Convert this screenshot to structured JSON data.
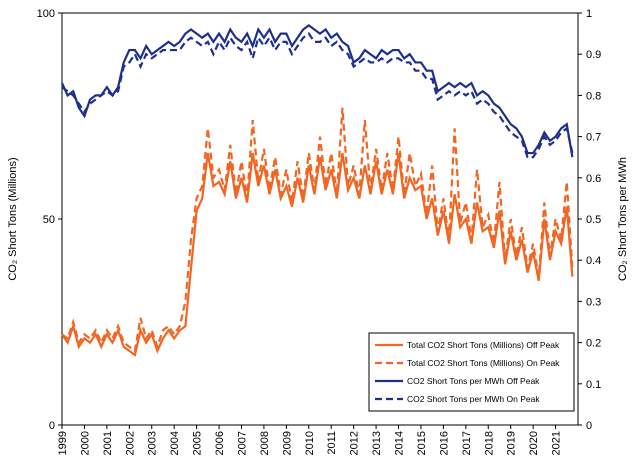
{
  "chart_data": {
    "type": "line",
    "ylabel": "CO₂ Short Tons (Millions)",
    "y2label": "CO₂ Short Tons per MWh",
    "xlim": [
      1999,
      2022
    ],
    "xticks": [
      1999,
      2000,
      2001,
      2002,
      2003,
      2004,
      2005,
      2006,
      2007,
      2008,
      2009,
      2010,
      2011,
      2012,
      2013,
      2014,
      2015,
      2016,
      2017,
      2018,
      2019,
      2020,
      2021
    ],
    "ylim": [
      0,
      100
    ],
    "yticks": [
      0,
      50,
      100
    ],
    "y2lim": [
      0,
      1
    ],
    "y2ticks": [
      0,
      0.1,
      0.2,
      0.3,
      0.4,
      0.5,
      0.6,
      0.7,
      0.8,
      0.9,
      1
    ],
    "legend": "lower right",
    "x": [
      1999,
      1999.25,
      1999.5,
      1999.75,
      2000,
      2000.25,
      2000.5,
      2000.75,
      2001,
      2001.25,
      2001.5,
      2001.75,
      2002,
      2002.25,
      2002.5,
      2002.75,
      2003,
      2003.25,
      2003.5,
      2003.75,
      2004,
      2004.25,
      2004.5,
      2004.75,
      2005,
      2005.25,
      2005.5,
      2005.75,
      2006,
      2006.25,
      2006.5,
      2006.75,
      2007,
      2007.25,
      2007.5,
      2007.75,
      2008,
      2008.25,
      2008.5,
      2008.75,
      2009,
      2009.25,
      2009.5,
      2009.75,
      2010,
      2010.25,
      2010.5,
      2010.75,
      2011,
      2011.25,
      2011.5,
      2011.75,
      2012,
      2012.25,
      2012.5,
      2012.75,
      2013,
      2013.25,
      2013.5,
      2013.75,
      2014,
      2014.25,
      2014.5,
      2014.75,
      2015,
      2015.25,
      2015.5,
      2015.75,
      2016,
      2016.25,
      2016.5,
      2016.75,
      2017,
      2017.25,
      2017.5,
      2017.75,
      2018,
      2018.25,
      2018.5,
      2018.75,
      2019,
      2019.25,
      2019.5,
      2019.75,
      2020,
      2020.25,
      2020.5,
      2020.75,
      2021,
      2021.25,
      2021.5,
      2021.75
    ],
    "series": [
      {
        "name": "Total CO2 Short Tons (Millions) Off Peak",
        "color": "#f26522",
        "dashed": false,
        "axis": "y",
        "values": [
          22,
          20,
          24,
          19,
          21,
          20,
          22,
          19,
          22,
          20,
          23,
          19,
          18,
          17,
          23,
          20,
          22,
          18,
          21,
          23,
          21,
          23,
          24,
          38,
          52,
          55,
          66,
          58,
          59,
          56,
          64,
          55,
          60,
          54,
          66,
          58,
          63,
          56,
          62,
          55,
          58,
          53,
          60,
          54,
          63,
          56,
          65,
          57,
          62,
          55,
          66,
          57,
          60,
          55,
          63,
          56,
          64,
          56,
          62,
          56,
          66,
          55,
          60,
          57,
          58,
          50,
          55,
          46,
          52,
          44,
          56,
          48,
          50,
          44,
          54,
          47,
          48,
          43,
          52,
          39,
          47,
          40,
          45,
          37,
          42,
          35,
          50,
          40,
          47,
          44,
          53,
          36
        ]
      },
      {
        "name": "Total CO2 Short Tons (Millions) On Peak",
        "color": "#f26522",
        "dashed": true,
        "axis": "y",
        "values": [
          22,
          21,
          25,
          20,
          22,
          21,
          23,
          20,
          23,
          21,
          24,
          20,
          19,
          18,
          26,
          21,
          23,
          19,
          23,
          24,
          22,
          24,
          30,
          45,
          55,
          58,
          72,
          60,
          62,
          57,
          68,
          56,
          64,
          55,
          74,
          59,
          67,
          57,
          65,
          56,
          62,
          54,
          64,
          55,
          66,
          57,
          70,
          58,
          66,
          56,
          77,
          58,
          63,
          56,
          74,
          57,
          67,
          57,
          66,
          57,
          70,
          56,
          66,
          58,
          61,
          51,
          63,
          47,
          55,
          45,
          72,
          49,
          54,
          45,
          62,
          48,
          51,
          44,
          59,
          40,
          50,
          41,
          48,
          38,
          44,
          36,
          54,
          41,
          50,
          45,
          59,
          38
        ]
      },
      {
        "name": "CO2 Short Tons per MWh Off Peak",
        "color": "#1f2f8c",
        "dashed": false,
        "axis": "y2",
        "values": [
          0.83,
          0.8,
          0.81,
          0.77,
          0.75,
          0.79,
          0.8,
          0.8,
          0.82,
          0.8,
          0.82,
          0.88,
          0.91,
          0.91,
          0.89,
          0.92,
          0.9,
          0.91,
          0.92,
          0.93,
          0.92,
          0.93,
          0.95,
          0.96,
          0.95,
          0.94,
          0.95,
          0.93,
          0.95,
          0.93,
          0.96,
          0.94,
          0.93,
          0.95,
          0.92,
          0.96,
          0.94,
          0.96,
          0.93,
          0.95,
          0.95,
          0.92,
          0.94,
          0.96,
          0.97,
          0.96,
          0.95,
          0.96,
          0.94,
          0.95,
          0.93,
          0.92,
          0.88,
          0.89,
          0.91,
          0.9,
          0.89,
          0.91,
          0.9,
          0.91,
          0.91,
          0.89,
          0.9,
          0.88,
          0.88,
          0.86,
          0.86,
          0.81,
          0.82,
          0.83,
          0.82,
          0.83,
          0.82,
          0.83,
          0.8,
          0.81,
          0.8,
          0.78,
          0.77,
          0.75,
          0.73,
          0.72,
          0.7,
          0.66,
          0.66,
          0.68,
          0.71,
          0.69,
          0.7,
          0.72,
          0.73,
          0.65
        ]
      },
      {
        "name": "CO2 Short Tons per MWh On Peak",
        "color": "#1f2f8c",
        "dashed": true,
        "axis": "y2",
        "values": [
          0.82,
          0.81,
          0.8,
          0.78,
          0.76,
          0.78,
          0.79,
          0.8,
          0.81,
          0.8,
          0.81,
          0.87,
          0.88,
          0.9,
          0.87,
          0.9,
          0.89,
          0.9,
          0.91,
          0.91,
          0.91,
          0.91,
          0.93,
          0.94,
          0.93,
          0.92,
          0.93,
          0.9,
          0.93,
          0.91,
          0.94,
          0.92,
          0.91,
          0.93,
          0.89,
          0.94,
          0.92,
          0.94,
          0.91,
          0.93,
          0.93,
          0.9,
          0.92,
          0.94,
          0.95,
          0.93,
          0.93,
          0.94,
          0.92,
          0.93,
          0.91,
          0.9,
          0.87,
          0.88,
          0.89,
          0.88,
          0.88,
          0.89,
          0.88,
          0.89,
          0.89,
          0.88,
          0.88,
          0.86,
          0.86,
          0.84,
          0.84,
          0.79,
          0.8,
          0.81,
          0.8,
          0.81,
          0.8,
          0.81,
          0.78,
          0.79,
          0.78,
          0.76,
          0.75,
          0.73,
          0.71,
          0.7,
          0.69,
          0.65,
          0.65,
          0.67,
          0.7,
          0.68,
          0.69,
          0.71,
          0.72,
          0.66
        ]
      }
    ]
  }
}
